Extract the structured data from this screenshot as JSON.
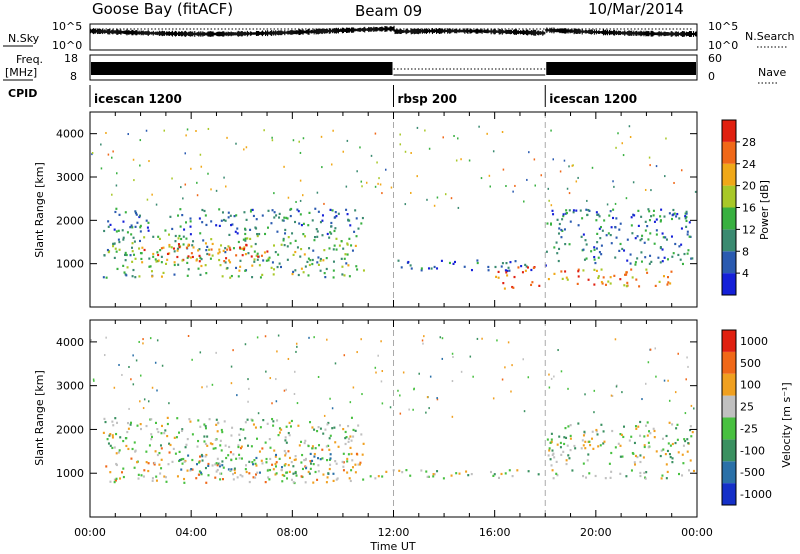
{
  "header": {
    "station": "Goose Bay (fitACF)",
    "beam": "Beam 09",
    "date": "10/Mar/2014"
  },
  "top_panels": {
    "nsky_label": "N.Sky",
    "nsky_ticks": [
      "10^5",
      "10^0"
    ],
    "nsearch_label": "N.Search",
    "nsearch_ticks": [
      "10^5",
      "10^0"
    ],
    "freq_label": "Freq.",
    "freq_unit": "[MHz]",
    "freq_ticks": [
      "18",
      "8"
    ],
    "nave_label": "Nave",
    "nave_ticks": [
      "60",
      "0"
    ],
    "cpid_label": "CPID",
    "cpid_segments": [
      {
        "label": "icescan 1200",
        "start_hour": 0,
        "end_hour": 12
      },
      {
        "label": "rbsp 200",
        "start_hour": 12,
        "end_hour": 18
      },
      {
        "label": "icescan 1200",
        "start_hour": 18,
        "end_hour": 24
      }
    ]
  },
  "axes": {
    "xlabel": "Time UT",
    "x_ticks": [
      "00:00",
      "04:00",
      "08:00",
      "12:00",
      "16:00",
      "20:00",
      "00:00"
    ],
    "ylabel": "Slant Range [km]",
    "y_ticks": [
      "1000",
      "2000",
      "3000",
      "4000"
    ]
  },
  "colorbars": {
    "power": {
      "label": "Power [dB]",
      "ticks": [
        "4",
        "8",
        "12",
        "16",
        "20",
        "24",
        "28"
      ],
      "colors": [
        "#1520d8",
        "#2a5ab0",
        "#3a8a70",
        "#38b040",
        "#a8c828",
        "#f0a818",
        "#f06818",
        "#e02010"
      ]
    },
    "velocity": {
      "label": "Velocity [m s⁻¹]",
      "ticks": [
        "1000",
        "500",
        "100",
        "25",
        "-25",
        "-100",
        "-500",
        "-1000"
      ],
      "colors": [
        "#1530c8",
        "#2a70a8",
        "#3a9060",
        "#48c040",
        "#c0c0c0",
        "#f0a020",
        "#f06818",
        "#e02010"
      ]
    }
  },
  "chart_data": [
    {
      "type": "heatmap",
      "title": "Power",
      "xlabel": "Time UT",
      "ylabel": "Slant Range [km]",
      "xlim_hours": [
        0,
        24
      ],
      "ylim_km": [
        0,
        4500
      ],
      "color_scale": "Power [dB]",
      "clim": [
        0,
        32
      ],
      "regions": [
        {
          "t0": 0.5,
          "t1": 10.8,
          "r0": 700,
          "r1": 1700,
          "value": 14
        },
        {
          "t0": 2.0,
          "t1": 7.0,
          "r0": 1050,
          "r1": 1500,
          "value": 26
        },
        {
          "t0": 0.5,
          "t1": 10.8,
          "r0": 1700,
          "r1": 2300,
          "value": 9
        },
        {
          "t0": 12.0,
          "t1": 18.0,
          "r0": 850,
          "r1": 1100,
          "value": 6
        },
        {
          "t0": 16.0,
          "t1": 18.0,
          "r0": 700,
          "r1": 950,
          "value": 26
        },
        {
          "t0": 16.0,
          "t1": 18.0,
          "r0": 450,
          "r1": 600,
          "value": 30
        },
        {
          "t0": 18.0,
          "t1": 23.8,
          "r0": 1000,
          "r1": 2300,
          "value": 9
        },
        {
          "t0": 18.0,
          "t1": 23.0,
          "r0": 500,
          "r1": 900,
          "value": 24
        }
      ]
    },
    {
      "type": "heatmap",
      "title": "Velocity",
      "xlabel": "Time UT",
      "ylabel": "Slant Range [km]",
      "xlim_hours": [
        0,
        24
      ],
      "ylim_km": [
        0,
        4500
      ],
      "color_scale": "Velocity [m s-1]",
      "clim": [
        -1000,
        1000
      ],
      "regions": [
        {
          "t0": 0.5,
          "t1": 10.8,
          "r0": 800,
          "r1": 1600,
          "value": 200
        },
        {
          "t0": 3.5,
          "t1": 10.0,
          "r0": 1000,
          "r1": 1500,
          "value": -300
        },
        {
          "t0": 0.5,
          "t1": 10.8,
          "r0": 1600,
          "r1": 2300,
          "value": 0
        },
        {
          "t0": 11.0,
          "t1": 24.0,
          "r0": 900,
          "r1": 1100,
          "value": 0
        },
        {
          "t0": 18.0,
          "t1": 23.8,
          "r0": 1200,
          "r1": 2200,
          "value": 0
        }
      ]
    }
  ]
}
